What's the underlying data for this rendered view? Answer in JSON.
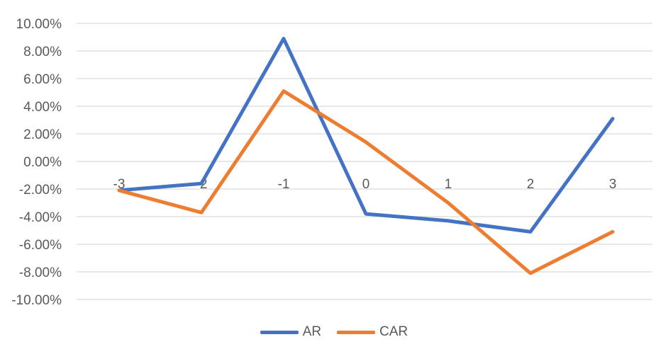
{
  "chart_data": {
    "type": "line",
    "title": "",
    "xlabel": "",
    "ylabel": "",
    "categories": [
      "-3",
      "-2",
      "-1",
      "0",
      "1",
      "2",
      "3"
    ],
    "ylim": [
      -0.1,
      0.1
    ],
    "ytick_step": 0.02,
    "y_tick_labels": [
      "10.00%",
      "8.00%",
      "6.00%",
      "4.00%",
      "2.00%",
      "0.00%",
      "-2.00%",
      "-4.00%",
      "-6.00%",
      "-8.00%",
      "-10.00%"
    ],
    "grid": true,
    "legend_position": "bottom",
    "series": [
      {
        "name": "AR",
        "color": "#4472C4",
        "values": [
          -0.021,
          -0.016,
          0.089,
          -0.038,
          -0.043,
          -0.051,
          0.031
        ]
      },
      {
        "name": "CAR",
        "color": "#ED7D31",
        "values": [
          -0.021,
          -0.037,
          0.051,
          0.014,
          -0.03,
          -0.081,
          -0.051
        ]
      }
    ]
  }
}
